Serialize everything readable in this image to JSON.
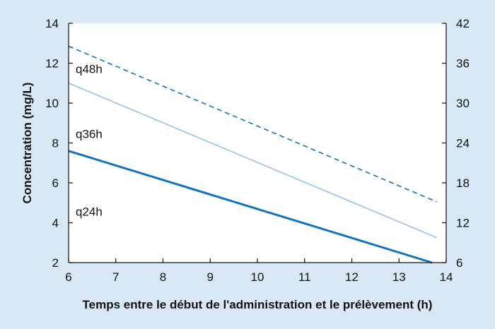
{
  "colors": {
    "background": "#d9e8f6",
    "plot_area": "#ffffff",
    "dark_blue": "#1273c4",
    "light_blue": "#8fc0e8",
    "axis": "#111111"
  },
  "chart_data": {
    "type": "line",
    "title": "",
    "xlabel": "Temps entre le début de l'administration et le prélèvement (h)",
    "ylabel": "Concentration (mg/L)",
    "xlim": [
      6,
      14
    ],
    "ylim": [
      2,
      14
    ],
    "y2lim": [
      6,
      42
    ],
    "x_ticks": [
      6,
      7,
      8,
      9,
      10,
      11,
      12,
      13,
      14
    ],
    "y_ticks": [
      2,
      4,
      6,
      8,
      10,
      12,
      14
    ],
    "y2_ticks": [
      6,
      12,
      18,
      24,
      30,
      36,
      42
    ],
    "grid": false,
    "series": [
      {
        "x": [
          6,
          13.8
        ],
        "y": [
          12.85,
          5.05
        ],
        "style": "dashed",
        "color": "#1273c4",
        "width": 1.6
      },
      {
        "x": [
          6,
          13.8
        ],
        "y": [
          11.0,
          3.25
        ],
        "style": "solid",
        "color": "#8fc0e8",
        "width": 1.5
      },
      {
        "x": [
          6,
          13.7
        ],
        "y": [
          7.6,
          2.0
        ],
        "style": "solid",
        "color": "#1273c4",
        "width": 3
      }
    ],
    "annotations": [
      {
        "text": "q48h",
        "x": 6.15,
        "y": 11.5
      },
      {
        "text": "q36h",
        "x": 6.15,
        "y": 8.25
      },
      {
        "text": "q24h",
        "x": 6.15,
        "y": 4.35
      }
    ]
  }
}
